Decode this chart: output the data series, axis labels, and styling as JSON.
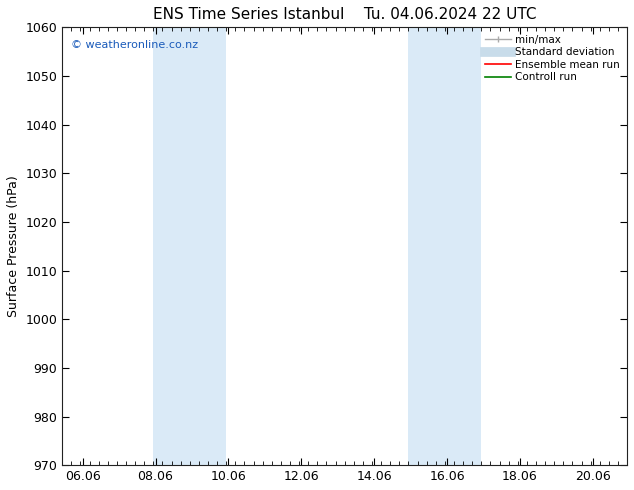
{
  "title": "ENS Time Series Istanbul    Tu. 04.06.2024 22 UTC",
  "ylabel": "Surface Pressure (hPa)",
  "xlim": [
    5.5,
    21.0
  ],
  "ylim": [
    970,
    1060
  ],
  "yticks": [
    970,
    980,
    990,
    1000,
    1010,
    1020,
    1030,
    1040,
    1050,
    1060
  ],
  "xtick_positions": [
    6.06,
    8.06,
    10.06,
    12.06,
    14.06,
    16.06,
    18.06,
    20.06
  ],
  "xtick_labels": [
    "06.06",
    "08.06",
    "10.06",
    "12.06",
    "14.06",
    "16.06",
    "18.06",
    "20.06"
  ],
  "shaded_bands": [
    {
      "x_start": 8.0,
      "x_end": 10.0
    },
    {
      "x_start": 15.0,
      "x_end": 17.0
    }
  ],
  "shaded_color": "#daeaf7",
  "background_color": "#ffffff",
  "watermark": "© weatheronline.co.nz",
  "watermark_color": "#1a5bba",
  "legend_items": [
    {
      "label": "min/max",
      "color": "#aaaaaa",
      "lw": 1.0
    },
    {
      "label": "Standard deviation",
      "color": "#c8dcea",
      "lw": 7
    },
    {
      "label": "Ensemble mean run",
      "color": "#ff0000",
      "lw": 1.2
    },
    {
      "label": "Controll run",
      "color": "#008000",
      "lw": 1.2
    }
  ],
  "tick_label_fontsize": 9,
  "axis_label_fontsize": 9,
  "title_fontsize": 11
}
